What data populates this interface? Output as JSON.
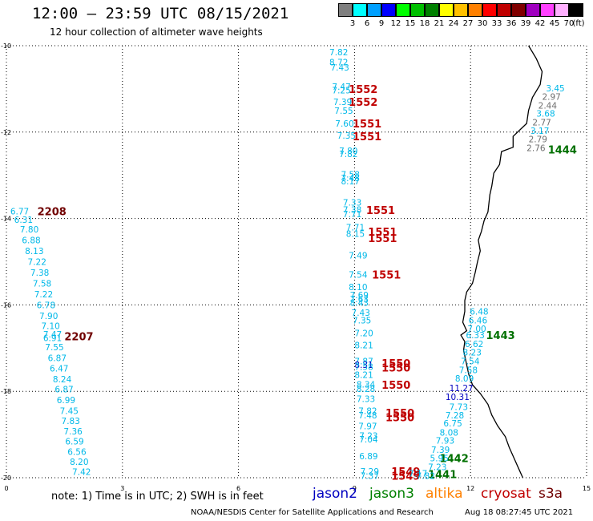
{
  "header": {
    "title": "12:00 – 23:59 UTC 08/15/2021",
    "subtitle": "12 hour collection of altimeter wave heights"
  },
  "legend": {
    "unit": "(ft)",
    "bins": [
      {
        "label": "3",
        "color": "#7f7f7f"
      },
      {
        "label": "6",
        "color": "#00ffff"
      },
      {
        "label": "9",
        "color": "#00a0ff"
      },
      {
        "label": "12",
        "color": "#0000ff"
      },
      {
        "label": "15",
        "color": "#00ff00"
      },
      {
        "label": "18",
        "color": "#00c000"
      },
      {
        "label": "21",
        "color": "#008000"
      },
      {
        "label": "24",
        "color": "#ffff00"
      },
      {
        "label": "27",
        "color": "#ffc000"
      },
      {
        "label": "30",
        "color": "#ff8000"
      },
      {
        "label": "33",
        "color": "#ff0000"
      },
      {
        "label": "36",
        "color": "#c00000"
      },
      {
        "label": "39",
        "color": "#800000"
      },
      {
        "label": "42",
        "color": "#a000c0"
      },
      {
        "label": "45",
        "color": "#ff40ff"
      },
      {
        "label": "70",
        "color": "#ffb0ff"
      },
      {
        "label": "",
        "color": "#000000"
      }
    ]
  },
  "axes": {
    "x_ticks": [
      "0",
      "3",
      "6",
      "9",
      "12",
      "15"
    ],
    "y_ticks": [
      "-10",
      "-12",
      "-14",
      "-16",
      "-18",
      "-20"
    ],
    "x_range": [
      0,
      15
    ],
    "y_range": [
      -20,
      -10
    ],
    "grid": true
  },
  "colors": {
    "cyan_low": "#00b8e8",
    "grey": "#6f6f6f",
    "blue_mid": "#0000c0",
    "time_jason2": "#c00000",
    "time_jason3": "#007000",
    "time_cryosat": "#c00000",
    "time_s3a": "#700000",
    "coast": "#000000"
  },
  "track_labels": [
    {
      "text": "2208",
      "lon": 0.8,
      "lat": -13.83,
      "color": "#700000"
    },
    {
      "text": "2207",
      "lon": 1.5,
      "lat": -16.73,
      "color": "#700000"
    },
    {
      "text": "1552",
      "lon": 8.85,
      "lat": -11.0,
      "color": "#c00000"
    },
    {
      "text": "1552",
      "lon": 8.85,
      "lat": -11.3,
      "color": "#c00000"
    },
    {
      "text": "1551",
      "lon": 8.95,
      "lat": -11.8,
      "color": "#c00000"
    },
    {
      "text": "1551",
      "lon": 8.95,
      "lat": -12.1,
      "color": "#c00000"
    },
    {
      "text": "1551",
      "lon": 9.3,
      "lat": -13.8,
      "color": "#c00000"
    },
    {
      "text": "1551",
      "lon": 9.35,
      "lat": -14.3,
      "color": "#c00000"
    },
    {
      "text": "1551",
      "lon": 9.35,
      "lat": -14.45,
      "color": "#c00000"
    },
    {
      "text": "1551",
      "lon": 9.45,
      "lat": -15.3,
      "color": "#c00000"
    },
    {
      "text": "1550",
      "lon": 9.7,
      "lat": -17.35,
      "color": "#c00000"
    },
    {
      "text": "1550",
      "lon": 9.7,
      "lat": -17.45,
      "color": "#c00000"
    },
    {
      "text": "1550",
      "lon": 9.7,
      "lat": -17.85,
      "color": "#c00000"
    },
    {
      "text": "1550",
      "lon": 9.8,
      "lat": -18.5,
      "color": "#c00000"
    },
    {
      "text": "1550",
      "lon": 9.8,
      "lat": -18.6,
      "color": "#c00000"
    },
    {
      "text": "1549",
      "lon": 9.95,
      "lat": -19.85,
      "color": "#c00000"
    },
    {
      "text": "1549",
      "lon": 9.95,
      "lat": -19.95,
      "color": "#c00000"
    },
    {
      "text": "1444",
      "lon": 14.0,
      "lat": -12.4,
      "color": "#007000"
    },
    {
      "text": "1443",
      "lon": 12.4,
      "lat": -16.7,
      "color": "#007000"
    },
    {
      "text": "1442",
      "lon": 11.2,
      "lat": -19.55,
      "color": "#007000"
    },
    {
      "text": "1441",
      "lon": 10.9,
      "lat": -19.92,
      "color": "#007000"
    }
  ],
  "wave_heights": [
    {
      "v": "6.77",
      "lon": 0.1,
      "lat": -13.83,
      "c": "#00b8e8"
    },
    {
      "v": "6.31",
      "lon": 0.2,
      "lat": -14.03,
      "c": "#00b8e8"
    },
    {
      "v": "7.80",
      "lon": 0.35,
      "lat": -14.25,
      "c": "#00b8e8"
    },
    {
      "v": "6.88",
      "lon": 0.4,
      "lat": -14.5,
      "c": "#00b8e8"
    },
    {
      "v": "8.13",
      "lon": 0.48,
      "lat": -14.75,
      "c": "#00b8e8"
    },
    {
      "v": "7.22",
      "lon": 0.55,
      "lat": -15.0,
      "c": "#00b8e8"
    },
    {
      "v": "7.38",
      "lon": 0.62,
      "lat": -15.25,
      "c": "#00b8e8"
    },
    {
      "v": "7.58",
      "lon": 0.68,
      "lat": -15.5,
      "c": "#00b8e8"
    },
    {
      "v": "7.22",
      "lon": 0.72,
      "lat": -15.75,
      "c": "#00b8e8"
    },
    {
      "v": "6.78",
      "lon": 0.78,
      "lat": -16.0,
      "c": "#00b8e8"
    },
    {
      "v": "7.90",
      "lon": 0.85,
      "lat": -16.25,
      "c": "#00b8e8"
    },
    {
      "v": "7.10",
      "lon": 0.9,
      "lat": -16.48,
      "c": "#00b8e8"
    },
    {
      "v": "7.47",
      "lon": 0.95,
      "lat": -16.68,
      "c": "#00b8e8"
    },
    {
      "v": "6.91",
      "lon": 0.95,
      "lat": -16.76,
      "c": "#00b8e8"
    },
    {
      "v": "7.55",
      "lon": 1.0,
      "lat": -16.98,
      "c": "#00b8e8"
    },
    {
      "v": "6.87",
      "lon": 1.07,
      "lat": -17.23,
      "c": "#00b8e8"
    },
    {
      "v": "6.47",
      "lon": 1.12,
      "lat": -17.47,
      "c": "#00b8e8"
    },
    {
      "v": "8.24",
      "lon": 1.2,
      "lat": -17.72,
      "c": "#00b8e8"
    },
    {
      "v": "6.87",
      "lon": 1.25,
      "lat": -17.95,
      "c": "#00b8e8"
    },
    {
      "v": "6.99",
      "lon": 1.3,
      "lat": -18.2,
      "c": "#00b8e8"
    },
    {
      "v": "7.45",
      "lon": 1.38,
      "lat": -18.45,
      "c": "#00b8e8"
    },
    {
      "v": "7.83",
      "lon": 1.42,
      "lat": -18.68,
      "c": "#00b8e8"
    },
    {
      "v": "7.36",
      "lon": 1.48,
      "lat": -18.92,
      "c": "#00b8e8"
    },
    {
      "v": "6.59",
      "lon": 1.52,
      "lat": -19.16,
      "c": "#00b8e8"
    },
    {
      "v": "6.56",
      "lon": 1.58,
      "lat": -19.4,
      "c": "#00b8e8"
    },
    {
      "v": "8.20",
      "lon": 1.64,
      "lat": -19.63,
      "c": "#00b8e8"
    },
    {
      "v": "7.42",
      "lon": 1.7,
      "lat": -19.86,
      "c": "#00b8e8"
    },
    {
      "v": "7.82",
      "lon": 8.35,
      "lat": -10.15,
      "c": "#00b8e8"
    },
    {
      "v": "8.72",
      "lon": 8.35,
      "lat": -10.38,
      "c": "#00b8e8"
    },
    {
      "v": "7.43",
      "lon": 8.38,
      "lat": -10.5,
      "c": "#00b8e8"
    },
    {
      "v": "7.47",
      "lon": 8.42,
      "lat": -10.95,
      "c": "#00b8e8"
    },
    {
      "v": "7.25",
      "lon": 8.42,
      "lat": -11.03,
      "c": "#00b8e8"
    },
    {
      "v": "7.39",
      "lon": 8.45,
      "lat": -11.3,
      "c": "#00b8e8"
    },
    {
      "v": "7.55",
      "lon": 8.48,
      "lat": -11.5,
      "c": "#00b8e8"
    },
    {
      "v": "7.60",
      "lon": 8.5,
      "lat": -11.8,
      "c": "#00b8e8"
    },
    {
      "v": "7.35",
      "lon": 8.55,
      "lat": -12.08,
      "c": "#00b8e8"
    },
    {
      "v": "7.80",
      "lon": 8.6,
      "lat": -12.43,
      "c": "#00b8e8"
    },
    {
      "v": "7.82",
      "lon": 8.6,
      "lat": -12.5,
      "c": "#00b8e8"
    },
    {
      "v": "7.58",
      "lon": 8.65,
      "lat": -12.98,
      "c": "#00b8e8"
    },
    {
      "v": "7.48",
      "lon": 8.65,
      "lat": -13.06,
      "c": "#00b8e8"
    },
    {
      "v": "8.17",
      "lon": 8.65,
      "lat": -13.14,
      "c": "#00b8e8"
    },
    {
      "v": "7.33",
      "lon": 8.7,
      "lat": -13.63,
      "c": "#00b8e8"
    },
    {
      "v": "7.38",
      "lon": 8.7,
      "lat": -13.79,
      "c": "#00b8e8"
    },
    {
      "v": "7.71",
      "lon": 8.7,
      "lat": -13.9,
      "c": "#00b8e8"
    },
    {
      "v": "7.71",
      "lon": 8.78,
      "lat": -14.2,
      "c": "#00b8e8"
    },
    {
      "v": "8.15",
      "lon": 8.78,
      "lat": -14.35,
      "c": "#00b8e8"
    },
    {
      "v": "7.49",
      "lon": 8.85,
      "lat": -14.85,
      "c": "#00b8e8"
    },
    {
      "v": "7.54",
      "lon": 8.85,
      "lat": -15.3,
      "c": "#00b8e8"
    },
    {
      "v": "8.10",
      "lon": 8.85,
      "lat": -15.58,
      "c": "#00b8e8"
    },
    {
      "v": "7.69",
      "lon": 8.88,
      "lat": -15.77,
      "c": "#00b8e8"
    },
    {
      "v": "7.63",
      "lon": 8.88,
      "lat": -15.86,
      "c": "#00b8e8"
    },
    {
      "v": "8.43",
      "lon": 8.88,
      "lat": -15.95,
      "c": "#00b8e8"
    },
    {
      "v": "7.43",
      "lon": 8.92,
      "lat": -16.18,
      "c": "#00b8e8"
    },
    {
      "v": "7.35",
      "lon": 8.95,
      "lat": -16.35,
      "c": "#00b8e8"
    },
    {
      "v": "7.20",
      "lon": 9.0,
      "lat": -16.65,
      "c": "#00b8e8"
    },
    {
      "v": "8.21",
      "lon": 9.0,
      "lat": -16.93,
      "c": "#00b8e8"
    },
    {
      "v": "7.87",
      "lon": 9.0,
      "lat": -17.3,
      "c": "#00b8e8"
    },
    {
      "v": "8.31",
      "lon": 9.0,
      "lat": -17.38,
      "c": "#0000c0"
    },
    {
      "v": "7.58",
      "lon": 9.0,
      "lat": -17.43,
      "c": "#00b8e8"
    },
    {
      "v": "8.21",
      "lon": 9.0,
      "lat": -17.62,
      "c": "#00b8e8"
    },
    {
      "v": "8.34",
      "lon": 9.05,
      "lat": -17.84,
      "c": "#00b8e8"
    },
    {
      "v": "8.28",
      "lon": 9.05,
      "lat": -17.94,
      "c": "#00b8e8"
    },
    {
      "v": "7.33",
      "lon": 9.05,
      "lat": -18.17,
      "c": "#00b8e8"
    },
    {
      "v": "7.82",
      "lon": 9.1,
      "lat": -18.45,
      "c": "#00b8e8"
    },
    {
      "v": "7.48",
      "lon": 9.1,
      "lat": -18.55,
      "c": "#00b8e8"
    },
    {
      "v": "7.97",
      "lon": 9.1,
      "lat": -18.8,
      "c": "#00b8e8"
    },
    {
      "v": "7.23",
      "lon": 9.12,
      "lat": -19.03,
      "c": "#00b8e8"
    },
    {
      "v": "7.04",
      "lon": 9.12,
      "lat": -19.11,
      "c": "#00b8e8"
    },
    {
      "v": "6.89",
      "lon": 9.12,
      "lat": -19.5,
      "c": "#00b8e8"
    },
    {
      "v": "7.29",
      "lon": 9.15,
      "lat": -19.85,
      "c": "#00b8e8"
    },
    {
      "v": "7.37",
      "lon": 9.15,
      "lat": -19.95,
      "c": "#00b8e8"
    },
    {
      "v": "7.17",
      "lon": 10.4,
      "lat": -19.9,
      "c": "#00b8e8"
    },
    {
      "v": "7.82",
      "lon": 10.6,
      "lat": -19.95,
      "c": "#00b8e8"
    },
    {
      "v": "7.23",
      "lon": 10.9,
      "lat": -19.75,
      "c": "#00b8e8"
    },
    {
      "v": "5.95",
      "lon": 10.95,
      "lat": -19.55,
      "c": "#00b8e8"
    },
    {
      "v": "7.39",
      "lon": 10.98,
      "lat": -19.35,
      "c": "#00b8e8"
    },
    {
      "v": "7.93",
      "lon": 11.1,
      "lat": -19.14,
      "c": "#00b8e8"
    },
    {
      "v": "8.08",
      "lon": 11.2,
      "lat": -18.95,
      "c": "#00b8e8"
    },
    {
      "v": "6.75",
      "lon": 11.3,
      "lat": -18.74,
      "c": "#00b8e8"
    },
    {
      "v": "7.28",
      "lon": 11.35,
      "lat": -18.55,
      "c": "#00b8e8"
    },
    {
      "v": "7.73",
      "lon": 11.45,
      "lat": -18.36,
      "c": "#00b8e8"
    },
    {
      "v": "10.31",
      "lon": 11.35,
      "lat": -18.13,
      "c": "#0000c0"
    },
    {
      "v": "11.27",
      "lon": 11.45,
      "lat": -17.92,
      "c": "#0000c0"
    },
    {
      "v": "8.09",
      "lon": 11.6,
      "lat": -17.7,
      "c": "#00b8e8"
    },
    {
      "v": "7.58",
      "lon": 11.7,
      "lat": -17.5,
      "c": "#00b8e8"
    },
    {
      "v": "7.54",
      "lon": 11.75,
      "lat": -17.3,
      "c": "#00b8e8"
    },
    {
      "v": "8.23",
      "lon": 11.8,
      "lat": -17.1,
      "c": "#00b8e8"
    },
    {
      "v": "6.62",
      "lon": 11.85,
      "lat": -16.9,
      "c": "#00b8e8"
    },
    {
      "v": "6.33",
      "lon": 11.88,
      "lat": -16.7,
      "c": "#00b8e8"
    },
    {
      "v": "7.00",
      "lon": 11.92,
      "lat": -16.55,
      "c": "#00b8e8"
    },
    {
      "v": "6.46",
      "lon": 11.95,
      "lat": -16.35,
      "c": "#00b8e8"
    },
    {
      "v": "6.48",
      "lon": 11.98,
      "lat": -16.15,
      "c": "#00b8e8"
    },
    {
      "v": "3.45",
      "lon": 13.95,
      "lat": -10.98,
      "c": "#00b8e8"
    },
    {
      "v": "2.97",
      "lon": 13.85,
      "lat": -11.18,
      "c": "#6f6f6f"
    },
    {
      "v": "2.44",
      "lon": 13.75,
      "lat": -11.38,
      "c": "#6f6f6f"
    },
    {
      "v": "3.68",
      "lon": 13.7,
      "lat": -11.57,
      "c": "#00b8e8"
    },
    {
      "v": "2.77",
      "lon": 13.6,
      "lat": -11.77,
      "c": "#6f6f6f"
    },
    {
      "v": "3.17",
      "lon": 13.55,
      "lat": -11.97,
      "c": "#00b8e8"
    },
    {
      "v": "2.79",
      "lon": 13.5,
      "lat": -12.16,
      "c": "#6f6f6f"
    },
    {
      "v": "2.76",
      "lon": 13.45,
      "lat": -12.37,
      "c": "#6f6f6f"
    }
  ],
  "coastline_ll": [
    [
      13.5,
      -10.0
    ],
    [
      13.7,
      -10.3
    ],
    [
      13.85,
      -10.6
    ],
    [
      13.8,
      -10.9
    ],
    [
      13.6,
      -11.2
    ],
    [
      13.5,
      -11.5
    ],
    [
      13.45,
      -11.8
    ],
    [
      13.1,
      -12.1
    ],
    [
      13.1,
      -12.35
    ],
    [
      12.8,
      -12.45
    ],
    [
      12.75,
      -12.75
    ],
    [
      12.6,
      -12.95
    ],
    [
      12.55,
      -13.25
    ],
    [
      12.5,
      -13.45
    ],
    [
      12.45,
      -13.85
    ],
    [
      12.35,
      -14.05
    ],
    [
      12.28,
      -14.3
    ],
    [
      12.2,
      -14.5
    ],
    [
      12.25,
      -14.75
    ],
    [
      12.18,
      -15.0
    ],
    [
      12.12,
      -15.25
    ],
    [
      12.05,
      -15.5
    ],
    [
      11.9,
      -15.7
    ],
    [
      11.85,
      -15.9
    ],
    [
      11.85,
      -16.15
    ],
    [
      11.8,
      -16.4
    ],
    [
      11.9,
      -16.6
    ],
    [
      11.75,
      -16.7
    ],
    [
      11.85,
      -16.85
    ],
    [
      11.82,
      -17.05
    ],
    [
      11.88,
      -17.3
    ],
    [
      11.95,
      -17.6
    ],
    [
      12.05,
      -17.85
    ],
    [
      12.25,
      -18.05
    ],
    [
      12.45,
      -18.3
    ],
    [
      12.55,
      -18.55
    ],
    [
      12.7,
      -18.8
    ],
    [
      12.9,
      -19.05
    ],
    [
      13.0,
      -19.3
    ],
    [
      13.15,
      -19.6
    ],
    [
      13.25,
      -19.8
    ],
    [
      13.35,
      -20.0
    ]
  ],
  "note": "note:  1) Time is in UTC;  2) SWH is in feet",
  "satellites": [
    {
      "name": "jason2",
      "color": "#0000c0"
    },
    {
      "name": "jason3",
      "color": "#008000"
    },
    {
      "name": "altika",
      "color": "#ff8000"
    },
    {
      "name": "cryosat",
      "color": "#c00000"
    },
    {
      "name": "s3a",
      "color": "#700000"
    }
  ],
  "footer": {
    "credit": "NOAA/NESDIS Center for Satellite Applications and Research",
    "date": "Aug 18 08:27:45 UTC 2021"
  }
}
